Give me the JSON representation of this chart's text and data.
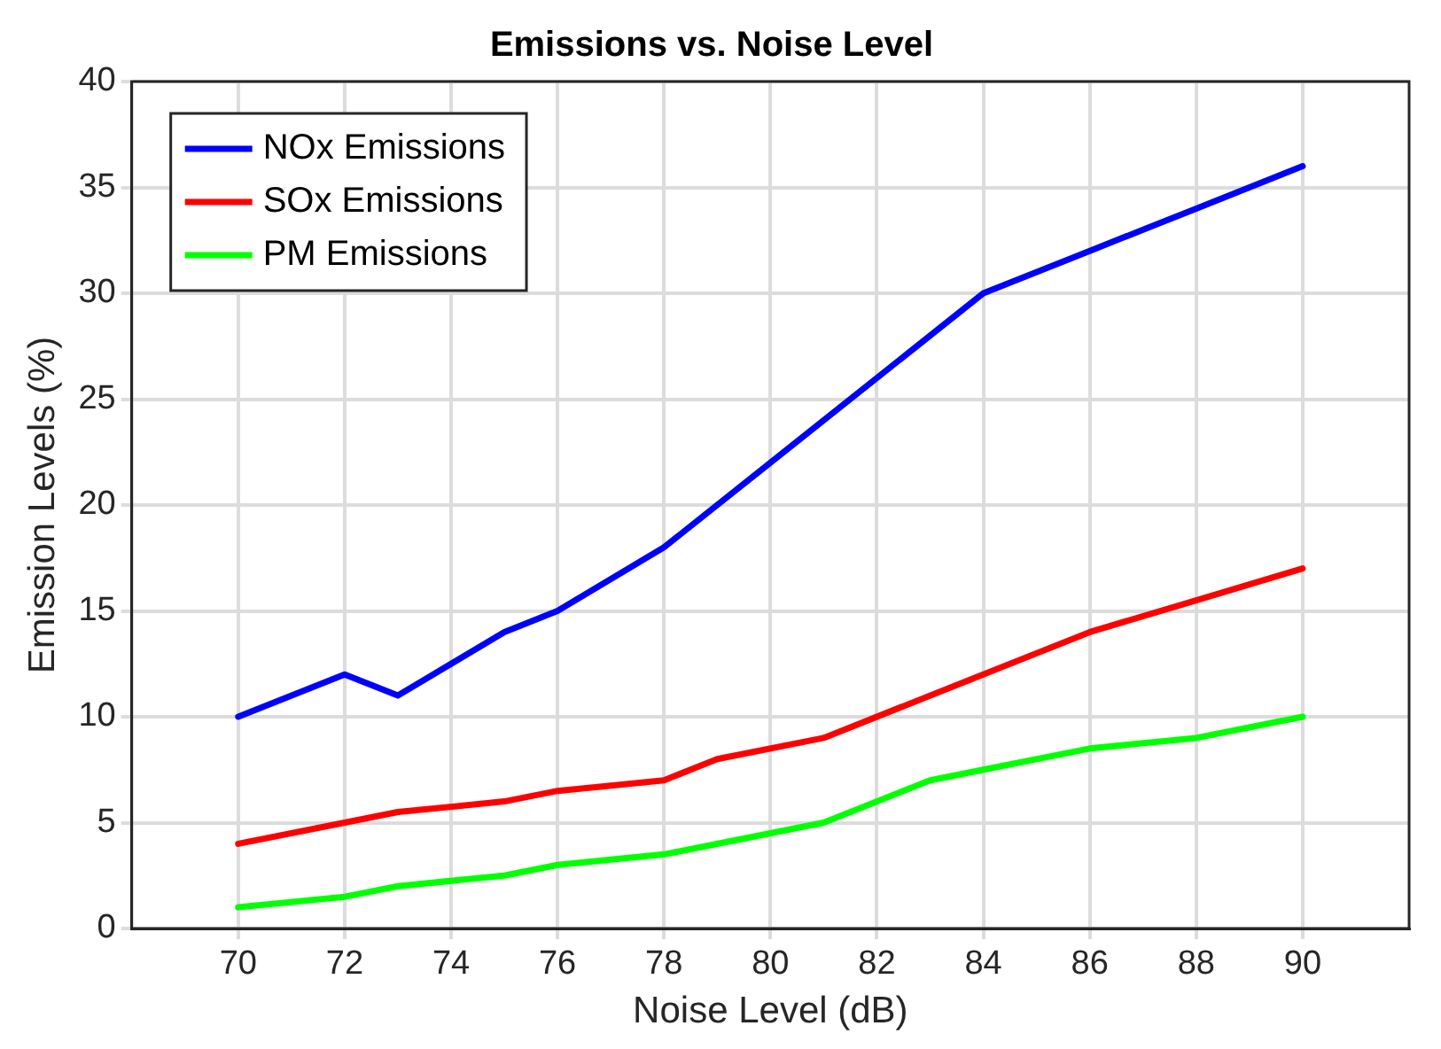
{
  "chart_data": {
    "type": "line",
    "title": "Emissions vs. Noise Level",
    "xlabel": "Noise Level (dB)",
    "ylabel": "Emission Levels (%)",
    "series": [
      {
        "name": "NOx Emissions",
        "color": "#0000ff",
        "x": [
          70,
          72,
          73,
          75,
          76,
          78,
          84,
          86,
          88,
          90
        ],
        "values": [
          10,
          12,
          11,
          14,
          15,
          18,
          30,
          32,
          34,
          36
        ]
      },
      {
        "name": "SOx Emissions",
        "color": "#ff0000",
        "x": [
          70,
          72,
          73,
          75,
          76,
          78,
          79,
          81,
          84,
          86,
          88,
          90
        ],
        "values": [
          4,
          5,
          5.5,
          6,
          6.5,
          7,
          8,
          9,
          12,
          14,
          15.5,
          17
        ]
      },
      {
        "name": "PM Emissions",
        "color": "#00ff00",
        "x": [
          70,
          72,
          73,
          75,
          76,
          78,
          81,
          83,
          84,
          86,
          88,
          90
        ],
        "values": [
          1,
          1.5,
          2,
          2.5,
          3,
          3.5,
          5,
          7,
          7.5,
          8.5,
          9,
          10
        ]
      }
    ],
    "xlim": [
      68,
      92
    ],
    "xticks": [
      70,
      72,
      74,
      76,
      78,
      80,
      82,
      84,
      86,
      88,
      90
    ],
    "ylim": [
      0,
      40
    ],
    "yticks": [
      0,
      5,
      10,
      15,
      20,
      25,
      30,
      35,
      40
    ],
    "grid": true,
    "legend": "top left",
    "marker": "none",
    "line_style": "solid"
  }
}
